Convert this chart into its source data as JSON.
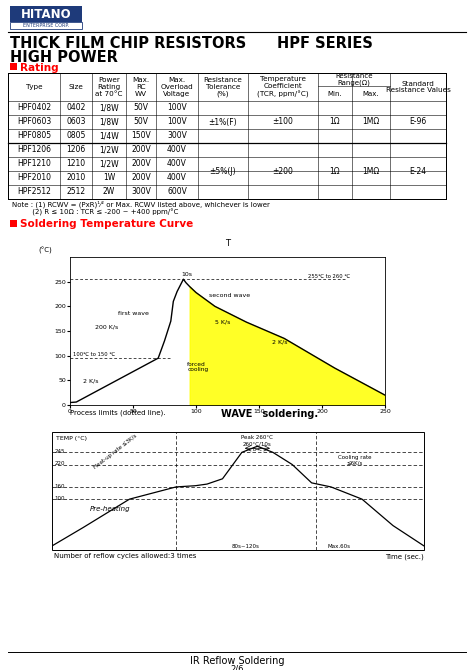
{
  "bg_color": "#ffffff",
  "logo_text": "HITANO",
  "logo_sub": "ENTERPRISE CORP.",
  "title_line1": "THICK FILM CHIP RESISTORS      HPF SERIES",
  "title_line2": "HIGH POWER",
  "section1_title": "Rating",
  "table_rows": [
    [
      "HPF0402",
      "0402",
      "1/8W",
      "50V",
      "100V",
      "",
      "",
      "",
      "",
      ""
    ],
    [
      "HPF0603",
      "0603",
      "1/8W",
      "50V",
      "100V",
      "±1%(F)",
      "±100",
      "1Ω",
      "1MΩ",
      "E-96"
    ],
    [
      "HPF0805",
      "0805",
      "1/4W",
      "150V",
      "300V",
      "",
      "",
      "",
      "",
      ""
    ],
    [
      "HPF1206",
      "1206",
      "1/2W",
      "200V",
      "400V",
      "",
      "",
      "",
      "",
      ""
    ],
    [
      "HPF1210",
      "1210",
      "1/2W",
      "200V",
      "400V",
      "±5%(J)",
      "±200",
      "1Ω",
      "1MΩ",
      "E-24"
    ],
    [
      "HPF2010",
      "2010",
      "1W",
      "200V",
      "400V",
      "",
      "",
      "",
      "",
      ""
    ],
    [
      "HPF2512",
      "2512",
      "2W",
      "300V",
      "600V",
      "",
      "",
      "",
      "",
      ""
    ]
  ],
  "note_line1": "Note : (1) RCWV = (PxR)¹⁄² or Max. RCWV listed above, whichever is lower",
  "note_line2": "         (2) R ≤ 10Ω : TCR ≤ -200 ~ +400 ppm/°C",
  "section2_title": "Soldering Temperature Curve",
  "wave_process_label": "Process limits (dotted line).",
  "wave_xlabel": "WAVE   soldering.",
  "ir_label": "IR Reflow Soldering",
  "page_label": "2/6"
}
